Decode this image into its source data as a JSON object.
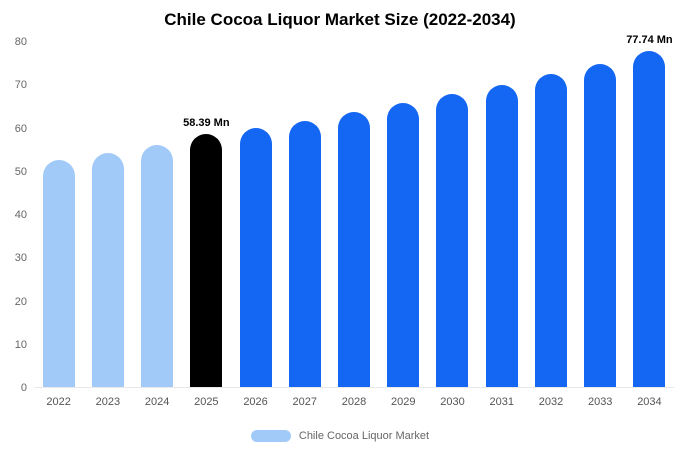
{
  "chart_data": {
    "type": "bar",
    "title": "Chile Cocoa Liquor Market Size (2022-2034)",
    "unit": "Mn",
    "categories": [
      "2022",
      "2023",
      "2024",
      "2025",
      "2026",
      "2027",
      "2028",
      "2029",
      "2030",
      "2031",
      "2032",
      "2033",
      "2034"
    ],
    "values": [
      52.5,
      54.2,
      56.0,
      58.39,
      60.0,
      61.6,
      63.7,
      65.7,
      67.7,
      69.9,
      72.3,
      74.8,
      77.74
    ],
    "bar_roles": [
      "historic",
      "historic",
      "historic",
      "base",
      "forecast",
      "forecast",
      "forecast",
      "forecast",
      "forecast",
      "forecast",
      "forecast",
      "forecast",
      "forecast"
    ],
    "colors": {
      "historic": "#A1CAF8",
      "base": "#000000",
      "forecast": "#1467F2"
    },
    "annotations": [
      {
        "index": 3,
        "text": "58.39 Mn"
      },
      {
        "index": 12,
        "text": "77.74 Mn"
      }
    ],
    "ylim": [
      0,
      80
    ],
    "yticks": [
      0,
      10,
      20,
      30,
      40,
      50,
      60,
      70,
      80
    ],
    "grid": false,
    "legend_position": "bottom",
    "legend": [
      {
        "label": "Chile Cocoa Liquor Market",
        "color": "#A1CAF8"
      }
    ]
  }
}
